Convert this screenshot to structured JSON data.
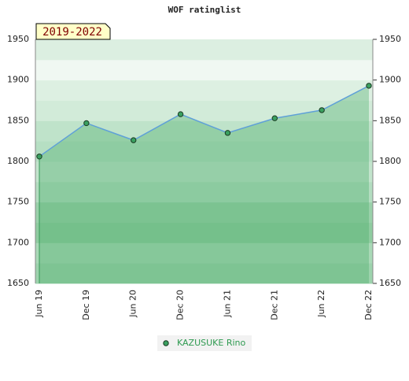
{
  "chart_data": {
    "type": "line",
    "title": "WOF ratinglist",
    "annotation": "2019-2022",
    "categories": [
      "Jun 19",
      "Dec 19",
      "Jun 20",
      "Dec 20",
      "Jun 21",
      "Dec 21",
      "Jun 22",
      "Dec 22"
    ],
    "series": [
      {
        "name": "KAZUSUKE Rino",
        "color": "#5fa0d8",
        "values": [
          1806,
          1847,
          1826,
          1858,
          1835,
          1853,
          1863,
          1893
        ]
      }
    ],
    "ylim": [
      1650,
      1950
    ],
    "yticks": [
      1650,
      1700,
      1750,
      1800,
      1850,
      1900,
      1950
    ],
    "grid": false
  }
}
